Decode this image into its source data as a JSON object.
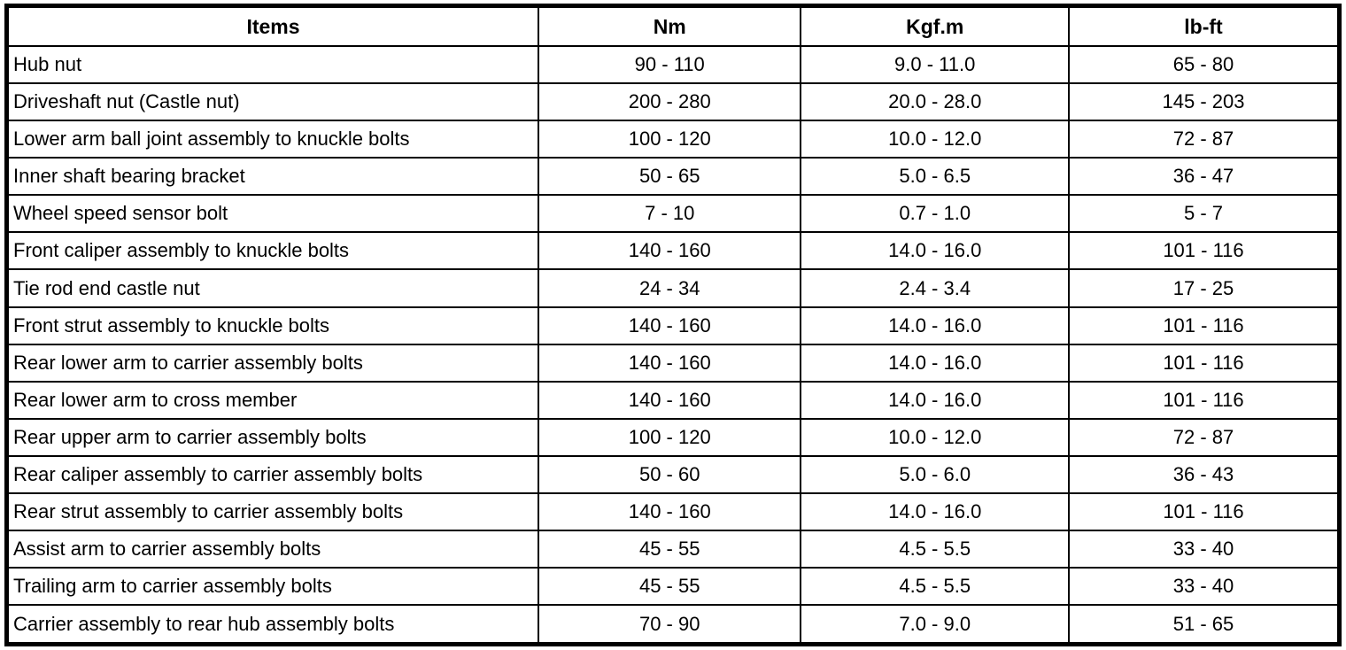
{
  "colors": {
    "border": "#000000",
    "text": "#000000",
    "background": "#ffffff"
  },
  "table": {
    "columns": [
      {
        "key": "item",
        "label": "Items"
      },
      {
        "key": "nm",
        "label": "Nm"
      },
      {
        "key": "kgfm",
        "label": "Kgf.m"
      },
      {
        "key": "lbft",
        "label": "lb-ft"
      }
    ],
    "rows": [
      {
        "item": "Hub nut",
        "nm": "90 - 110",
        "kgfm": "9.0 - 11.0",
        "lbft": "65 - 80"
      },
      {
        "item": "Driveshaft nut (Castle nut)",
        "nm": "200 - 280",
        "kgfm": "20.0 - 28.0",
        "lbft": "145 - 203"
      },
      {
        "item": "Lower arm ball joint assembly to knuckle bolts",
        "nm": "100 - 120",
        "kgfm": "10.0 - 12.0",
        "lbft": "72 - 87"
      },
      {
        "item": "Inner shaft bearing bracket",
        "nm": "50 - 65",
        "kgfm": "5.0 - 6.5",
        "lbft": "36 - 47"
      },
      {
        "item": "Wheel speed sensor bolt",
        "nm": "7 - 10",
        "kgfm": "0.7 - 1.0",
        "lbft": "5 - 7"
      },
      {
        "item": "Front caliper assembly to knuckle bolts",
        "nm": "140 - 160",
        "kgfm": "14.0 - 16.0",
        "lbft": "101 - 116"
      },
      {
        "item": "Tie rod end castle nut",
        "nm": "24 - 34",
        "kgfm": "2.4 - 3.4",
        "lbft": "17 - 25"
      },
      {
        "item": "Front strut assembly to knuckle bolts",
        "nm": "140 - 160",
        "kgfm": "14.0 - 16.0",
        "lbft": "101 - 116"
      },
      {
        "item": "Rear lower arm to carrier assembly bolts",
        "nm": "140 - 160",
        "kgfm": "14.0 - 16.0",
        "lbft": "101 - 116"
      },
      {
        "item": "Rear lower arm to cross member",
        "nm": "140 - 160",
        "kgfm": "14.0 - 16.0",
        "lbft": "101 - 116"
      },
      {
        "item": "Rear upper arm to carrier assembly bolts",
        "nm": "100 - 120",
        "kgfm": "10.0 - 12.0",
        "lbft": "72 - 87"
      },
      {
        "item": "Rear caliper assembly to carrier assembly bolts",
        "nm": "50 - 60",
        "kgfm": "5.0 - 6.0",
        "lbft": "36 - 43"
      },
      {
        "item": "Rear strut assembly to carrier assembly bolts",
        "nm": "140 - 160",
        "kgfm": "14.0 - 16.0",
        "lbft": "101 - 116"
      },
      {
        "item": "Assist arm to carrier assembly bolts",
        "nm": "45 - 55",
        "kgfm": "4.5 - 5.5",
        "lbft": "33 - 40"
      },
      {
        "item": "Trailing arm to carrier assembly bolts",
        "nm": "45 - 55",
        "kgfm": "4.5 - 5.5",
        "lbft": "33 - 40"
      },
      {
        "item": "Carrier assembly to rear hub assembly bolts",
        "nm": "70 - 90",
        "kgfm": "7.0 - 9.0",
        "lbft": "51 - 65"
      }
    ]
  }
}
